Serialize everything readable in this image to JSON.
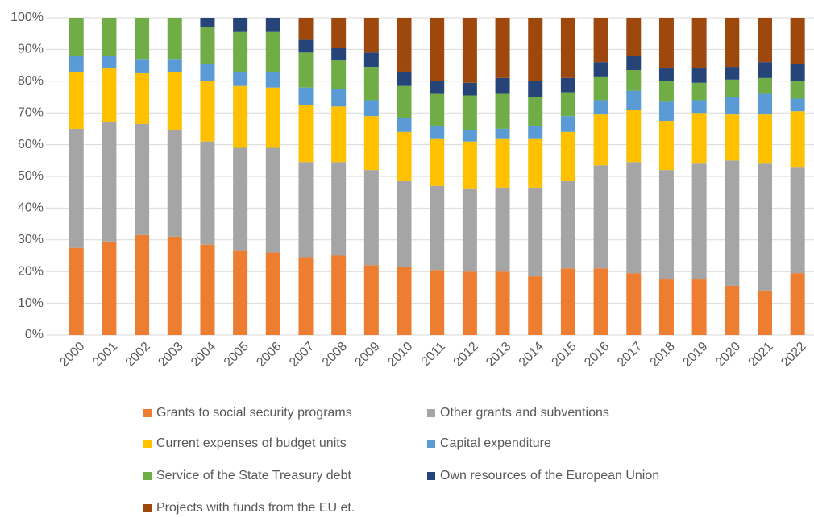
{
  "chart_data": {
    "type": "stacked_bar",
    "categories": [
      "2000",
      "2001",
      "2002",
      "2003",
      "2004",
      "2005",
      "2006",
      "2007",
      "2008",
      "2009",
      "2010",
      "2011",
      "2012",
      "2013",
      "2014",
      "2015",
      "2016",
      "2017",
      "2018",
      "2019",
      "2020",
      "2021",
      "2022"
    ],
    "series": [
      {
        "name": "Grants to social security programs",
        "color": "#ed7d31",
        "values": [
          27.5,
          29.5,
          31.5,
          31,
          28.5,
          26.5,
          26,
          24.5,
          25,
          22,
          21.5,
          20.5,
          20,
          20,
          18.5,
          21,
          21,
          19.5,
          17.5,
          17.5,
          15.5,
          14,
          19.5
        ]
      },
      {
        "name": "Other grants and subventions",
        "color": "#a5a5a5",
        "values": [
          37.5,
          37.5,
          35,
          33.5,
          32.5,
          32.5,
          33,
          30,
          29.5,
          30,
          27,
          26.5,
          26,
          26.5,
          28,
          27.5,
          32.5,
          35,
          34.5,
          36.5,
          39.5,
          40,
          33.5
        ]
      },
      {
        "name": "Current expenses of budget units",
        "color": "#ffc000",
        "values": [
          18,
          17,
          16,
          18.5,
          19,
          19.5,
          19,
          18,
          17.5,
          17,
          15.5,
          15,
          15,
          15.5,
          15.5,
          15.5,
          16,
          16.5,
          15.5,
          16,
          14.5,
          15.5,
          17.5
        ]
      },
      {
        "name": "Capital expenditure",
        "color": "#5b9bd5",
        "values": [
          5,
          4,
          4.5,
          4,
          5.5,
          4.5,
          5,
          5.5,
          5.5,
          5,
          4.5,
          4,
          3.5,
          3,
          4,
          5,
          4.5,
          6,
          6,
          4,
          5.5,
          6.5,
          4
        ]
      },
      {
        "name": "Service of the State Treasury debt",
        "color": "#70ad47",
        "values": [
          12,
          12,
          13,
          13,
          11.5,
          12.5,
          12.5,
          11,
          9,
          10.5,
          10,
          10,
          11,
          11,
          9,
          7.5,
          7.5,
          6.5,
          6.5,
          5.5,
          5.5,
          5,
          5.5
        ]
      },
      {
        "name": "Own resources of the European Union",
        "color": "#264478",
        "values": [
          0,
          0,
          0,
          0,
          3,
          4.5,
          4.5,
          4,
          4,
          4.5,
          4.5,
          4,
          4,
          5,
          5,
          4.5,
          4.5,
          4.5,
          4,
          4.5,
          4,
          5,
          5.5
        ]
      },
      {
        "name": "Projects with funds from the EU et.",
        "color": "#9e480e",
        "values": [
          0,
          0,
          0,
          0,
          0,
          0,
          0,
          7,
          9.5,
          11,
          17,
          20,
          20.5,
          19,
          20,
          19,
          14,
          12,
          16,
          16,
          15.5,
          14,
          14.5
        ]
      }
    ],
    "ylim": [
      0,
      100
    ],
    "yticks": [
      {
        "value": 0,
        "label": "0%"
      },
      {
        "value": 10,
        "label": "10%"
      },
      {
        "value": 20,
        "label": "20%"
      },
      {
        "value": 30,
        "label": "30%"
      },
      {
        "value": 40,
        "label": "40%"
      },
      {
        "value": 50,
        "label": "50%"
      },
      {
        "value": 60,
        "label": "60%"
      },
      {
        "value": 70,
        "label": "70%"
      },
      {
        "value": 80,
        "label": "80%"
      },
      {
        "value": 90,
        "label": "90%"
      },
      {
        "value": 100,
        "label": "100%"
      }
    ],
    "grid": true
  }
}
